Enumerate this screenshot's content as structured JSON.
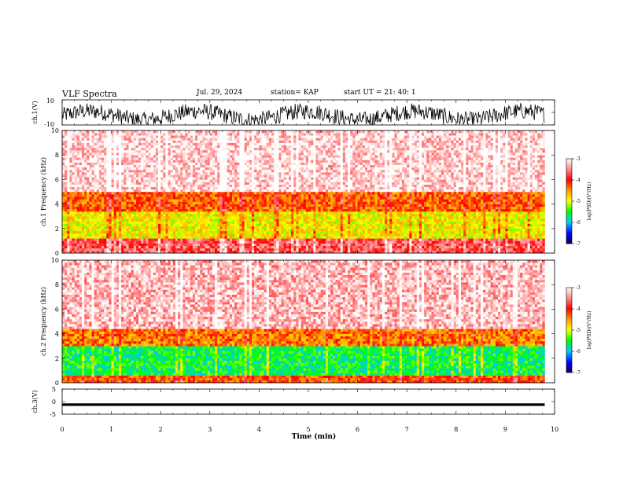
{
  "header": {
    "title": "VLF Spectra",
    "date": "Jul. 29, 2024",
    "station": "station= KAP",
    "start": "start UT =  21: 40: 1"
  },
  "chart_data": [
    {
      "type": "line",
      "id": "ch1-waveform",
      "ylabel": "ch.1(V)",
      "ylim": [
        -10,
        10
      ],
      "ytick_labels": [
        "10",
        "-10"
      ],
      "xlim": [
        0,
        10
      ],
      "x_end": 9.8,
      "series_color": "#000000"
    },
    {
      "type": "heatmap",
      "id": "ch1-spectrogram",
      "ylabel": "ch.1 Frequency (kHz)",
      "ylim": [
        0,
        10
      ],
      "yticks": [
        0,
        2,
        4,
        6,
        8,
        10
      ],
      "xlim": [
        0,
        10
      ],
      "x_end": 9.8,
      "colorbar": {
        "label": "log(PSD)(V²/Hz)",
        "range": [
          -7,
          -3
        ],
        "ticks": [
          -3,
          -4,
          -5,
          -6,
          -7
        ]
      },
      "bands": [
        {
          "from": 0,
          "to": 1.2,
          "level": -3.7
        },
        {
          "from": 1.2,
          "to": 3.5,
          "level": -4.9
        },
        {
          "from": 3.5,
          "to": 5.0,
          "level": -4.3
        },
        {
          "from": 5.0,
          "to": 10,
          "level": -3.2
        }
      ]
    },
    {
      "type": "heatmap",
      "id": "ch2-spectrogram",
      "ylabel": "ch.2 Frequency (kHz)",
      "ylim": [
        0,
        10
      ],
      "yticks": [
        0,
        2,
        4,
        6,
        8,
        10
      ],
      "xlim": [
        0,
        10
      ],
      "x_end": 9.8,
      "colorbar": {
        "label": "log(PSD)(V²/Hz)",
        "range": [
          -7,
          -3
        ],
        "ticks": [
          -3,
          -4,
          -5,
          -6,
          -7
        ]
      },
      "bands": [
        {
          "from": 0,
          "to": 0.7,
          "level": -4.2
        },
        {
          "from": 0.7,
          "to": 3.0,
          "level": -5.6
        },
        {
          "from": 3.0,
          "to": 4.5,
          "level": -4.4
        },
        {
          "from": 4.5,
          "to": 10,
          "level": -3.3
        }
      ]
    },
    {
      "type": "line",
      "id": "ch3-waveform",
      "ylabel": "ch.3(V)",
      "ylim": [
        -5,
        5
      ],
      "yticks": [
        5,
        0,
        -5
      ],
      "ytick_labels": [
        "5",
        "0",
        "-5"
      ],
      "xlim": [
        0,
        10
      ],
      "xticks": [
        0,
        1,
        2,
        3,
        4,
        5,
        6,
        7,
        8,
        9,
        10
      ],
      "xlabel": "Time (min)",
      "x_end": 9.8,
      "band": [
        -1.7,
        -0.7
      ],
      "series_color": "#000000"
    }
  ]
}
